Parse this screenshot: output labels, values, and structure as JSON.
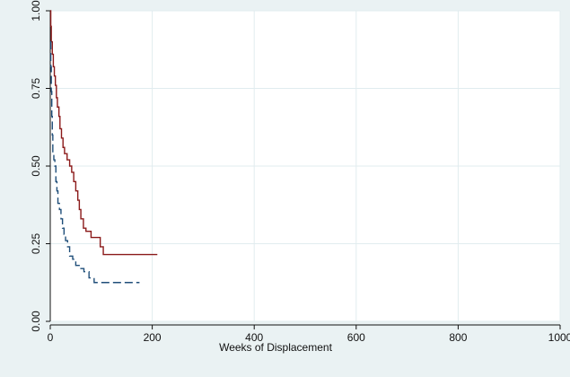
{
  "chart_data": {
    "type": "line",
    "title": "",
    "xlabel": "Weeks of Displacement",
    "ylabel": "",
    "xlim": [
      0,
      1000
    ],
    "ylim": [
      0,
      1
    ],
    "x_ticks": [
      {
        "value": 0,
        "label": "0"
      },
      {
        "value": 200,
        "label": "200"
      },
      {
        "value": 400,
        "label": "400"
      },
      {
        "value": 600,
        "label": "600"
      },
      {
        "value": 800,
        "label": "800"
      },
      {
        "value": 1000,
        "label": "1000"
      }
    ],
    "y_ticks": [
      {
        "value": 0,
        "label": "0.00"
      },
      {
        "value": 0.25,
        "label": "0.25"
      },
      {
        "value": 0.5,
        "label": "0.50"
      },
      {
        "value": 0.75,
        "label": "0.75"
      },
      {
        "value": 1,
        "label": "1.00"
      }
    ],
    "grid": true,
    "legend": "none",
    "step": true,
    "series": [
      {
        "color": "#8b1a1a",
        "dash": "solid",
        "points": [
          [
            0,
            1.0
          ],
          [
            1,
            0.95
          ],
          [
            2,
            0.9
          ],
          [
            4,
            0.86
          ],
          [
            6,
            0.82
          ],
          [
            8,
            0.79
          ],
          [
            10,
            0.76
          ],
          [
            12,
            0.72
          ],
          [
            14,
            0.69
          ],
          [
            17,
            0.66
          ],
          [
            19,
            0.62
          ],
          [
            22,
            0.59
          ],
          [
            25,
            0.56
          ],
          [
            28,
            0.54
          ],
          [
            33,
            0.52
          ],
          [
            38,
            0.5
          ],
          [
            42,
            0.48
          ],
          [
            46,
            0.45
          ],
          [
            50,
            0.42
          ],
          [
            54,
            0.39
          ],
          [
            57,
            0.36
          ],
          [
            60,
            0.33
          ],
          [
            65,
            0.3
          ],
          [
            70,
            0.29
          ],
          [
            80,
            0.27
          ],
          [
            98,
            0.24
          ],
          [
            104,
            0.215
          ],
          [
            210,
            0.215
          ]
        ]
      },
      {
        "color": "#1f4e79",
        "dash": "dashed",
        "points": [
          [
            0,
            0.9
          ],
          [
            1,
            0.82
          ],
          [
            2,
            0.74
          ],
          [
            3,
            0.66
          ],
          [
            4,
            0.6
          ],
          [
            5,
            0.54
          ],
          [
            7,
            0.52
          ],
          [
            9,
            0.5
          ],
          [
            11,
            0.45
          ],
          [
            13,
            0.42
          ],
          [
            15,
            0.38
          ],
          [
            18,
            0.36
          ],
          [
            21,
            0.33
          ],
          [
            24,
            0.3
          ],
          [
            27,
            0.28
          ],
          [
            30,
            0.26
          ],
          [
            34,
            0.24
          ],
          [
            38,
            0.21
          ],
          [
            44,
            0.2
          ],
          [
            50,
            0.18
          ],
          [
            58,
            0.17
          ],
          [
            66,
            0.16
          ],
          [
            76,
            0.14
          ],
          [
            86,
            0.125
          ],
          [
            175,
            0.125
          ]
        ]
      }
    ],
    "colors": {
      "outer_background": "#eaf2f3",
      "plot_background": "#ffffff",
      "grid": "#e1ecef",
      "axis": "#111111"
    }
  }
}
